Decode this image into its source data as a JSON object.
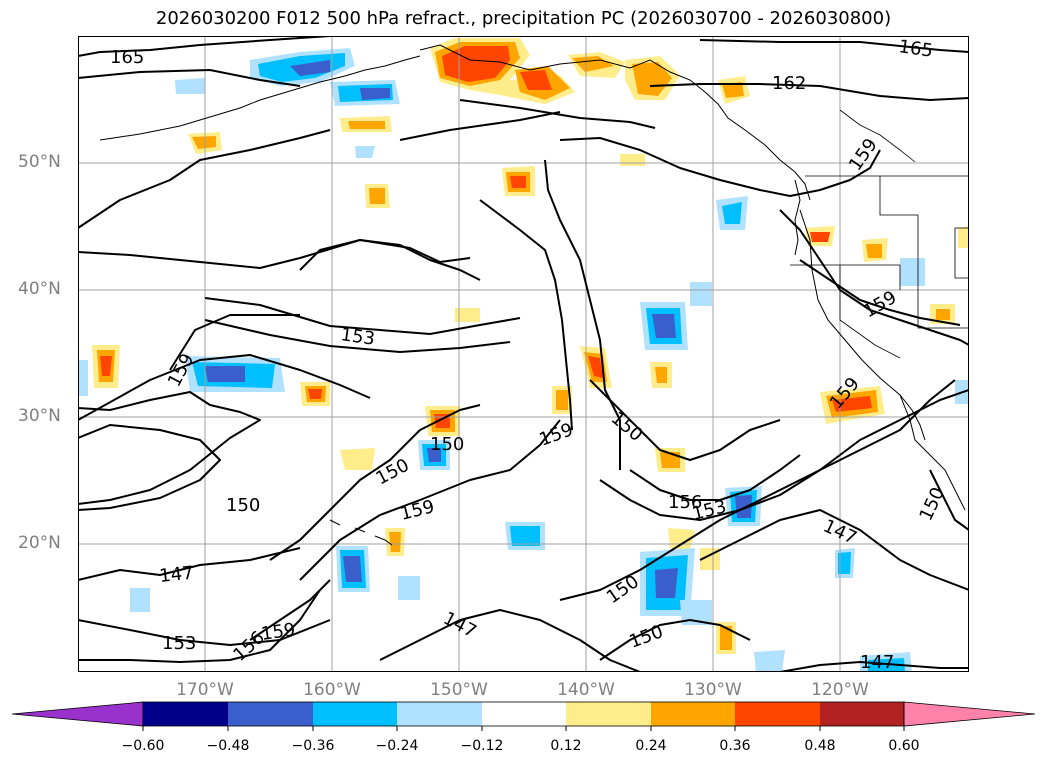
{
  "title": "2026030200 F012 500 hPa refract., precipitation PC (2026030700 - 2026030800)",
  "lat_labels": [
    "50°N",
    "40°N",
    "30°N",
    "20°N"
  ],
  "lon_labels": [
    "170°W",
    "160°W",
    "150°W",
    "140°W",
    "130°W",
    "120°W"
  ],
  "contour_labels": [
    "165",
    "165",
    "162",
    "159",
    "159",
    "159",
    "153",
    "159",
    "150",
    "150",
    "150",
    "159",
    "159",
    "150",
    "156",
    "153",
    "147",
    "147",
    "150",
    "150",
    "147",
    "153",
    "156",
    "159",
    "150",
    "147"
  ],
  "colorbar": {
    "ticks": [
      "−0.60",
      "−0.48",
      "−0.36",
      "−0.24",
      "−0.12",
      "0.12",
      "0.24",
      "0.36",
      "0.48",
      "0.60"
    ],
    "colors": [
      "#9932cc",
      "#00008b",
      "#3a5fcd",
      "#00bfff",
      "#b0e2ff",
      "#ffffff",
      "#ffec8b",
      "#ffa500",
      "#ff4500",
      "#b22222",
      "#ff82ab"
    ]
  }
}
